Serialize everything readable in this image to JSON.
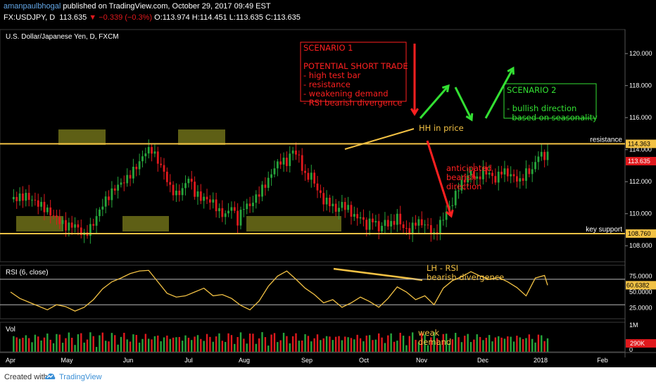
{
  "header": {
    "author": "amanpaulbhogal",
    "published": "published on TradingView.com, October 29, 2017 09:49 EST",
    "symbol": "FX:USDJPY, D",
    "last": "113.635",
    "change": "−0.339 (−0.3%)",
    "ohlc": "O:113.974 H:114.451 L:113.635 C:113.635"
  },
  "footer": {
    "created_with": "Created with",
    "brand": "TradingView"
  },
  "colors": {
    "up": "#26a63c",
    "down": "#e0191d",
    "level": "#f2c144",
    "rsi": "#f2c144",
    "annotation_red": "#ff2020",
    "annotation_green": "#33e033",
    "box": "#6e7019"
  },
  "chart_data": [
    {
      "type": "candlestick",
      "title": "U.S. Dollar/Japanese Yen, D, FXCM",
      "x_ticks": [
        "Apr",
        "May",
        "Jun",
        "Jul",
        "Aug",
        "Sep",
        "Oct",
        "Nov",
        "Dec",
        "2018",
        "Feb"
      ],
      "y_ticks": [
        "120.000",
        "118.000",
        "116.000",
        "114.000",
        "112.000",
        "110.000",
        "108.000"
      ],
      "ylim": [
        107.0,
        121.5
      ],
      "levels": [
        {
          "label": "resistance",
          "value": 114.363,
          "tag": "114.363"
        },
        {
          "label": "key support",
          "value": 108.76,
          "tag": "108.760"
        }
      ],
      "last_price_tag": "113.635",
      "close_path": [
        [
          0,
          110.9
        ],
        [
          5,
          111.1
        ],
        [
          10,
          110.5
        ],
        [
          15,
          109.7
        ],
        [
          18,
          109.2
        ],
        [
          21,
          109.3
        ],
        [
          24,
          108.6
        ],
        [
          27,
          109.4
        ],
        [
          30,
          110.6
        ],
        [
          34,
          111.6
        ],
        [
          38,
          112.2
        ],
        [
          42,
          113.2
        ],
        [
          44,
          113.9
        ],
        [
          46,
          114.0
        ],
        [
          48,
          113.3
        ],
        [
          50,
          112.6
        ],
        [
          52,
          111.6
        ],
        [
          54,
          111.2
        ],
        [
          56,
          111.5
        ],
        [
          58,
          112.3
        ],
        [
          60,
          111.3
        ],
        [
          62,
          111.0
        ],
        [
          64,
          110.9
        ],
        [
          66,
          110.7
        ],
        [
          68,
          110.1
        ],
        [
          70,
          109.9
        ],
        [
          72,
          110.5
        ],
        [
          74,
          109.5
        ],
        [
          76,
          110.5
        ],
        [
          78,
          110.5
        ],
        [
          81,
          111.3
        ],
        [
          84,
          112.1
        ],
        [
          86,
          112.9
        ],
        [
          88,
          113.3
        ],
        [
          90,
          113.2
        ],
        [
          92,
          114.0
        ],
        [
          94,
          113.5
        ],
        [
          96,
          112.3
        ],
        [
          98,
          112.4
        ],
        [
          100,
          111.5
        ],
        [
          102,
          110.8
        ],
        [
          104,
          110.7
        ],
        [
          106,
          110.2
        ],
        [
          108,
          110.6
        ],
        [
          110,
          110.3
        ],
        [
          112,
          109.8
        ],
        [
          114,
          109.8
        ],
        [
          116,
          109.2
        ],
        [
          118,
          109.7
        ],
        [
          120,
          109.0
        ],
        [
          122,
          109.5
        ],
        [
          124,
          109.3
        ],
        [
          126,
          109.8
        ],
        [
          128,
          109.1
        ],
        [
          130,
          108.9
        ],
        [
          132,
          109.5
        ],
        [
          134,
          109.4
        ],
        [
          136,
          109.2
        ],
        [
          138,
          108.6
        ],
        [
          140,
          109.4
        ],
        [
          142,
          110.1
        ],
        [
          144,
          110.7
        ],
        [
          146,
          111.7
        ],
        [
          148,
          112.1
        ],
        [
          150,
          112.6
        ],
        [
          152,
          112.1
        ],
        [
          154,
          112.7
        ],
        [
          156,
          112.5
        ],
        [
          158,
          112.1
        ],
        [
          160,
          112.7
        ],
        [
          162,
          112.5
        ],
        [
          164,
          112.3
        ],
        [
          166,
          112.0
        ],
        [
          168,
          112.6
        ],
        [
          170,
          112.7
        ],
        [
          172,
          113.7
        ],
        [
          174,
          113.6
        ],
        [
          175,
          113.635
        ]
      ],
      "annotations": [
        {
          "text": "SCENARIO 1\n\nPOTENTIAL SHORT TRADE\n- high test bar\n- resistance\n- weakening demand\n- RSI bearish divergence"
        },
        {
          "text": "HH in price"
        },
        {
          "text": "SCENARIO 2\n\n- bullish direction\n  based on seasonality"
        },
        {
          "text": "anticipated\nbearish\ndirection"
        }
      ]
    },
    {
      "type": "line",
      "title": "RSI (6, close)",
      "y_ticks": [
        "75.0000",
        "50.0000",
        "25.0000"
      ],
      "ylim": [
        8,
        92
      ],
      "hlines": [
        70,
        30
      ],
      "last_value_tag": "60.6382",
      "x": [
        0,
        3,
        6,
        9,
        12,
        15,
        18,
        21,
        24,
        27,
        30,
        33,
        36,
        39,
        42,
        45,
        48,
        51,
        54,
        57,
        60,
        63,
        66,
        69,
        72,
        75,
        78,
        81,
        84,
        87,
        90,
        93,
        96,
        99,
        102,
        105,
        108,
        111,
        114,
        117,
        120,
        123,
        126,
        129,
        132,
        135,
        138,
        141,
        144,
        147,
        150,
        153,
        156,
        159,
        162,
        165,
        168,
        171,
        174,
        175
      ],
      "values": [
        50,
        40,
        34,
        28,
        22,
        30,
        27,
        20,
        26,
        38,
        55,
        66,
        72,
        79,
        83,
        84,
        66,
        48,
        42,
        44,
        50,
        56,
        44,
        46,
        40,
        29,
        22,
        36,
        59,
        75,
        83,
        70,
        56,
        46,
        33,
        38,
        26,
        33,
        42,
        35,
        26,
        40,
        58,
        50,
        38,
        44,
        30,
        56,
        68,
        74,
        82,
        75,
        70,
        73,
        66,
        57,
        44,
        72,
        76,
        60.64
      ],
      "annotations": [
        {
          "text": "LH - RSI\nbearish divergence"
        }
      ]
    },
    {
      "type": "bar",
      "title": "Vol",
      "y_ticks": [
        "1M",
        "0"
      ],
      "last_value_tag": "290K",
      "annotations": [
        {
          "text": "weak\ndemand"
        }
      ]
    }
  ]
}
